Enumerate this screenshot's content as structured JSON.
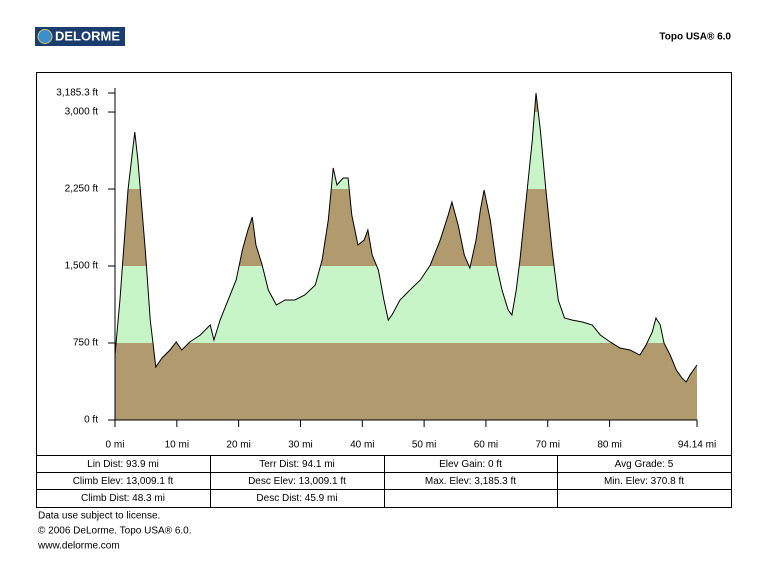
{
  "header": {
    "logo": "DELORME",
    "product": "Topo USA® 6.0"
  },
  "chart_data": {
    "type": "area",
    "x": [
      0,
      0.8,
      2.1,
      3.2,
      3.7,
      4.9,
      5.7,
      6.6,
      7.6,
      8.9,
      9.9,
      10.8,
      12.1,
      13.8,
      15.4,
      16.0,
      17.0,
      18.3,
      19.6,
      20.6,
      21.5,
      22.2,
      22.8,
      23.8,
      24.8,
      26.1,
      27.5,
      29.1,
      30.7,
      32.4,
      33.5,
      34.5,
      35.3,
      35.9,
      36.9,
      37.7,
      38.3,
      39.3,
      40.3,
      40.9,
      41.6,
      42.6,
      43.5,
      44.2,
      44.8,
      46.1,
      47.7,
      49.4,
      51.0,
      52.6,
      53.9,
      54.5,
      55.5,
      56.5,
      57.4,
      58.4,
      59.1,
      59.7,
      60.7,
      61.7,
      62.6,
      63.6,
      64.2,
      64.9,
      65.5,
      66.5,
      67.5,
      68.1,
      68.8,
      69.7,
      70.7,
      71.7,
      72.7,
      73.9,
      75.6,
      77.2,
      78.5,
      80.1,
      81.7,
      83.3,
      84.9,
      85.9,
      86.9,
      87.5,
      88.2,
      88.8,
      89.8,
      90.8,
      91.7,
      92.4,
      93.0,
      94.14
    ],
    "values": [
      633,
      1169,
      2240,
      2805,
      2532,
      1656,
      974,
      516,
      604,
      682,
      760,
      682,
      760,
      828,
      925,
      779,
      974,
      1169,
      1364,
      1656,
      1851,
      1977,
      1705,
      1510,
      1266,
      1120,
      1169,
      1169,
      1218,
      1315,
      1558,
      1948,
      2455,
      2289,
      2357,
      2357,
      1997,
      1705,
      1753,
      1851,
      1607,
      1461,
      1169,
      974,
      1023,
      1169,
      1266,
      1364,
      1510,
      1753,
      1997,
      2123,
      1899,
      1607,
      1480,
      1753,
      2045,
      2240,
      1948,
      1510,
      1266,
      1071,
      1023,
      1266,
      1558,
      2143,
      2727,
      3185.3,
      2824,
      2240,
      1656,
      1169,
      994,
      974,
      955,
      925,
      828,
      760,
      701,
      682,
      633,
      730,
      857,
      994,
      925,
      750,
      633,
      487,
      409,
      370.8,
      438,
      536
    ],
    "band_colors": [
      "#b09a6e",
      "#c8f5c8"
    ],
    "line_color": "#000000",
    "xlim": [
      0,
      94.14
    ],
    "xticks": [
      {
        "value": 0,
        "label": "0 mi"
      },
      {
        "value": 10,
        "label": "10 mi"
      },
      {
        "value": 20,
        "label": "20 mi"
      },
      {
        "value": 30,
        "label": "30 mi"
      },
      {
        "value": 40,
        "label": "40 mi"
      },
      {
        "value": 50,
        "label": "50 mi"
      },
      {
        "value": 60,
        "label": "60 mi"
      },
      {
        "value": 70,
        "label": "70 mi"
      },
      {
        "value": 80,
        "label": "80 mi"
      },
      {
        "value": 94.14,
        "label": "94.14 mi"
      }
    ],
    "ylim": [
      0,
      3185.3
    ],
    "yticks": [
      {
        "value": 0,
        "label": "0 ft"
      },
      {
        "value": 750,
        "label": "750 ft"
      },
      {
        "value": 1500,
        "label": "1,500 ft"
      },
      {
        "value": 2250,
        "label": "2,250 ft"
      },
      {
        "value": 3000,
        "label": "3,000 ft"
      },
      {
        "value": 3185.3,
        "label": "3,185.3 ft"
      }
    ]
  },
  "table": {
    "rows": [
      [
        "Lin Dist: 93.9 mi",
        "Terr Dist: 94.1 mi",
        "Elev Gain: 0 ft",
        "Avg Grade: 5"
      ],
      [
        "Climb Elev: 13,009.1 ft",
        "Desc Elev: 13,009.1 ft",
        "Max. Elev: 3,185.3 ft",
        "Min. Elev: 370.8 ft"
      ],
      [
        "Climb Dist: 48.3 mi",
        "Desc Dist: 45.9 mi"
      ]
    ]
  },
  "footer": {
    "lines": [
      "Data use subject to license.",
      "© 2006 DeLorme. Topo USA® 6.0.",
      "www.delorme.com"
    ]
  }
}
